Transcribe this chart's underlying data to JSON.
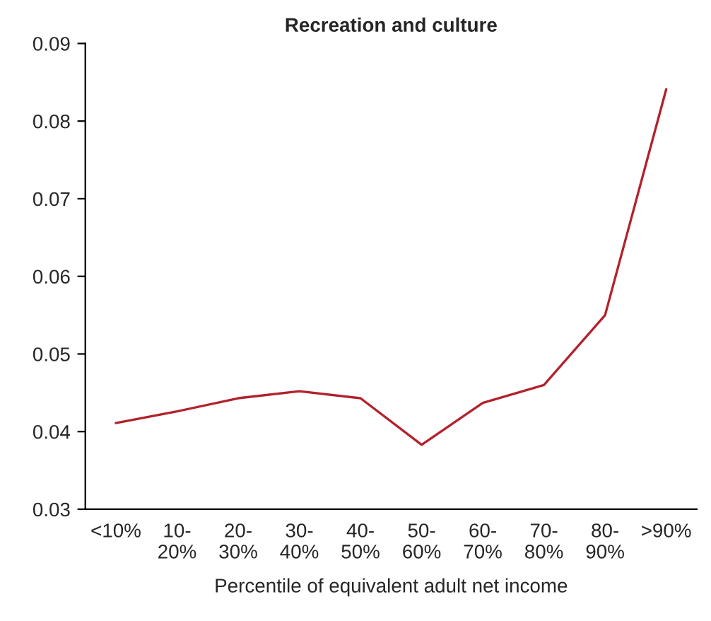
{
  "chart_data": {
    "type": "line",
    "title": "Recreation and culture",
    "xlabel": "Percentile of equivalent adult net income",
    "categories": [
      "<10%",
      "10-\n20%",
      "20-\n30%",
      "30-\n40%",
      "40-\n50%",
      "50-\n60%",
      "60-\n70%",
      "70-\n80%",
      "80-\n90%",
      ">90%"
    ],
    "series": [
      {
        "color": "#b2222c",
        "values": [
          0.0411,
          0.0426,
          0.0443,
          0.0452,
          0.0443,
          0.0383,
          0.0437,
          0.046,
          0.055,
          0.0841
        ]
      }
    ],
    "ylim": [
      0.03,
      0.09
    ],
    "yticks": [
      0.03,
      0.04,
      0.05,
      0.06,
      0.07,
      0.08,
      0.09
    ],
    "grid": false,
    "legend": false,
    "marker": "none",
    "line_style": "solid"
  }
}
